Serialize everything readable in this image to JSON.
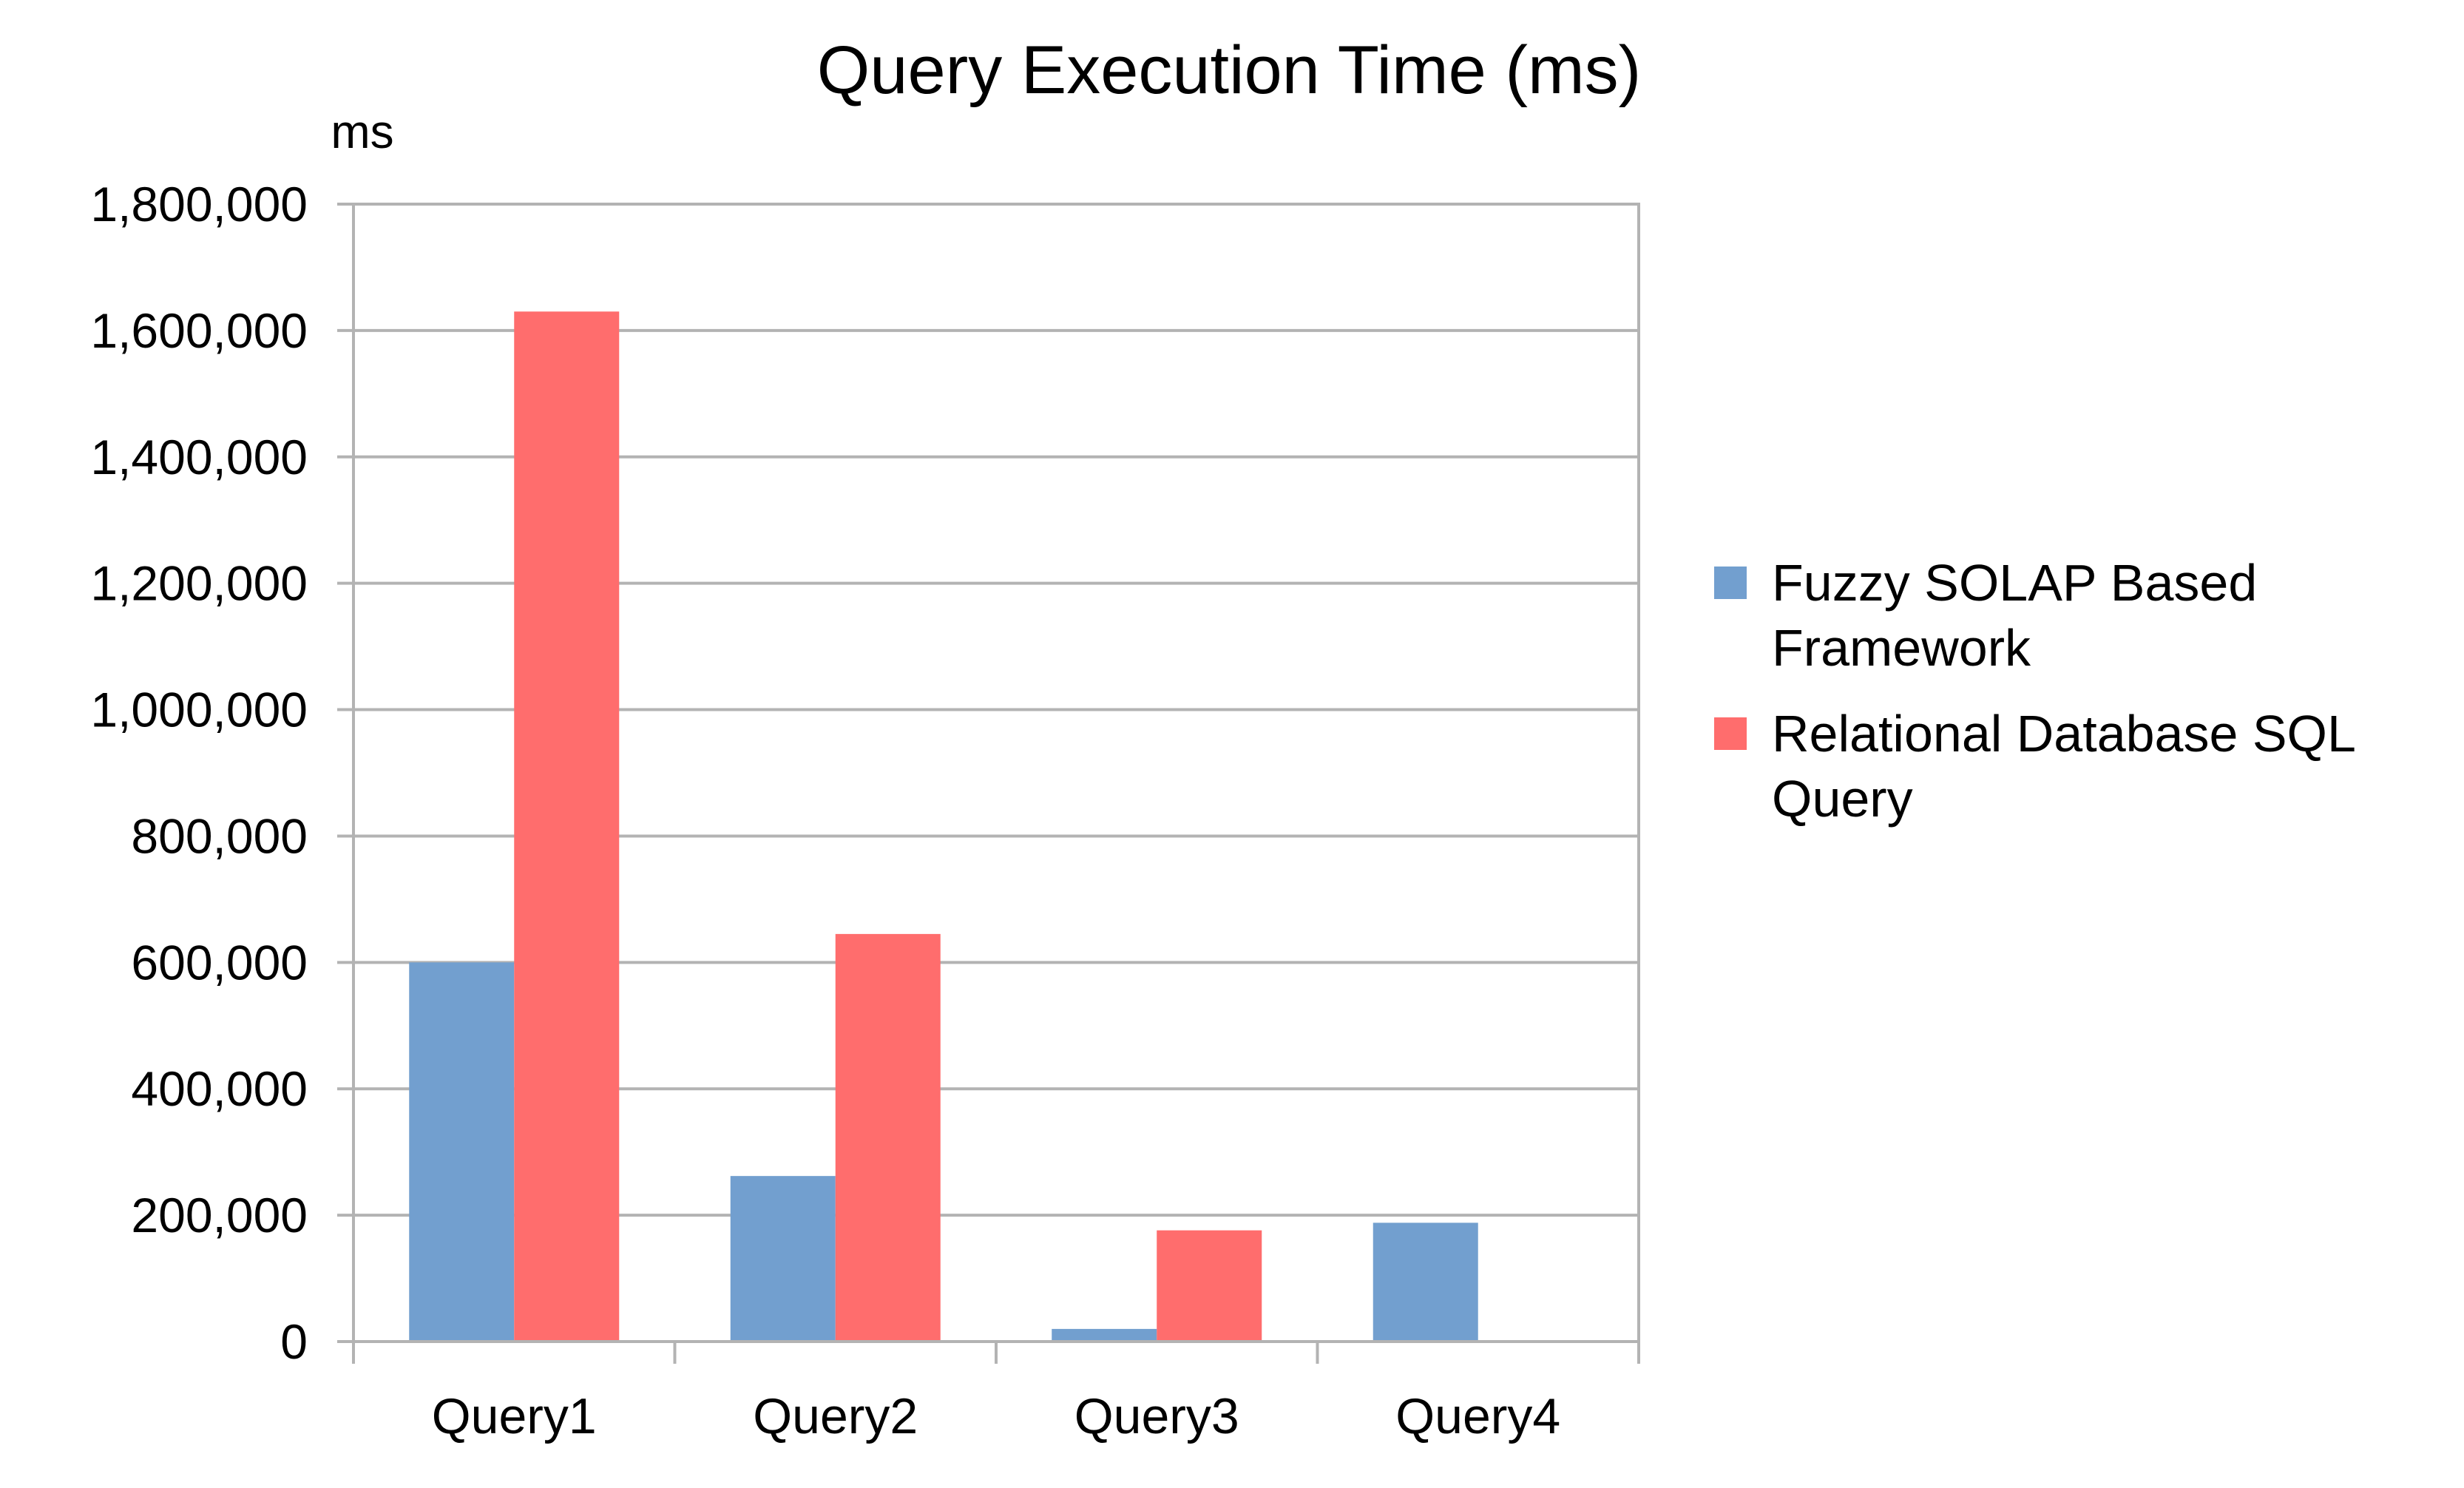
{
  "chart_data": {
    "type": "bar",
    "title": "Query Execution Time (ms)",
    "ylabel": "ms",
    "xlabel": "",
    "categories": [
      "Query1",
      "Query2",
      "Query3",
      "Query4"
    ],
    "series": [
      {
        "name": "Fuzzy SOLAP Based Framework",
        "legend_lines": [
          "Fuzzy SOLAP Based",
          "Framework"
        ],
        "color": "#729fcf",
        "values": [
          600000,
          262000,
          20000,
          188000
        ]
      },
      {
        "name": "Relational Database SQL Query",
        "legend_lines": [
          "Relational Database SQL",
          "Query"
        ],
        "color": "#ff6d6d",
        "values": [
          1630000,
          645000,
          176000,
          0
        ]
      }
    ],
    "ylim": [
      0,
      1800000
    ],
    "yticks": [
      0,
      200000,
      400000,
      600000,
      800000,
      1000000,
      1200000,
      1400000,
      1600000,
      1800000
    ],
    "ytick_labels": [
      "0",
      "200,000",
      "400,000",
      "600,000",
      "800,000",
      "1,000,000",
      "1,200,000",
      "1,400,000",
      "1,600,000",
      "1,800,000"
    ],
    "grid": true,
    "legend_position": "right"
  }
}
